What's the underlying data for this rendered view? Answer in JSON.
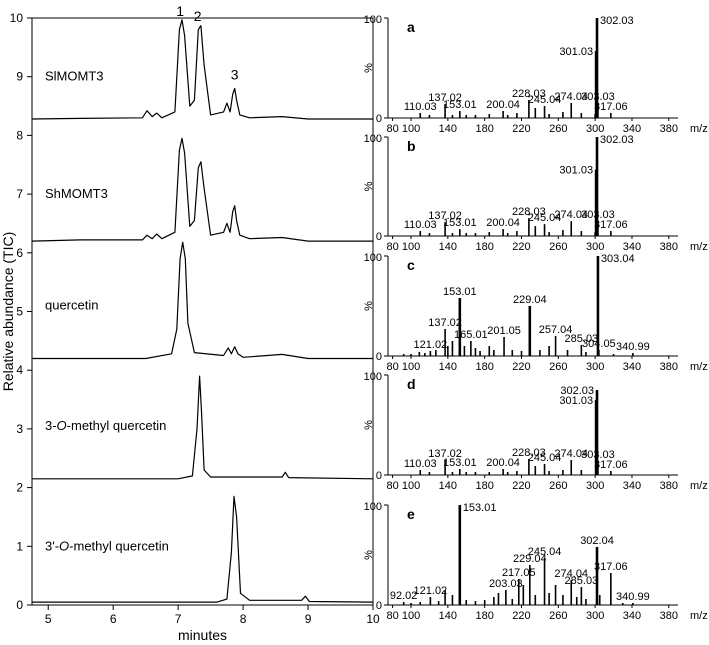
{
  "left_panel": {
    "ylabel": "Relative abundance (TIC)",
    "xlabel": "minutes",
    "x_ticks": [
      "5",
      "6",
      "7",
      "8",
      "9",
      "10"
    ],
    "y_ticks": [
      "0",
      "1",
      "2",
      "3",
      "4",
      "5",
      "6",
      "7",
      "8",
      "9",
      "10"
    ],
    "peak_labels": [
      "1",
      "2",
      "3"
    ],
    "trace_labels": [
      {
        "text": "SlMOMT3",
        "italic_part": "",
        "rest": ""
      },
      {
        "text": "ShMOMT3",
        "italic_part": "",
        "rest": ""
      },
      {
        "text": "quercetin",
        "italic_part": "",
        "rest": ""
      },
      {
        "text": "3-",
        "italic_part": "O",
        "rest": "-methyl quercetin"
      },
      {
        "text": "3'-",
        "italic_part": "O",
        "rest": "-methyl quercetin"
      }
    ]
  },
  "spectra_axis": {
    "x_ticks": [
      "80",
      "100",
      "140",
      "180",
      "220",
      "260",
      "300",
      "340",
      "380"
    ],
    "x_unit": "m/z",
    "y_top": "100",
    "y_mid": "%",
    "y_bottom": "0"
  },
  "chart_data": [
    {
      "type": "line",
      "title": "",
      "xlabel": "minutes",
      "ylabel": "Relative abundance (TIC)",
      "xlim": [
        4.75,
        10
      ],
      "ylim": [
        0,
        10
      ],
      "series": [
        {
          "baseline": 8.28,
          "x": [
            4.75,
            5.5,
            6.45,
            6.52,
            6.6,
            6.67,
            6.75,
            6.95,
            7.02,
            7.06,
            7.1,
            7.18,
            7.25,
            7.31,
            7.35,
            7.4,
            7.5,
            7.7,
            7.75,
            7.8,
            7.84,
            7.87,
            7.9,
            7.95,
            8.1,
            8.6,
            9,
            10
          ],
          "y": [
            8.28,
            8.29,
            8.3,
            8.42,
            8.32,
            8.38,
            8.3,
            8.4,
            9.8,
            9.97,
            9.7,
            8.5,
            8.6,
            9.8,
            9.87,
            9.2,
            8.35,
            8.4,
            8.55,
            8.4,
            8.7,
            8.8,
            8.6,
            8.35,
            8.3,
            8.32,
            8.28,
            8.28
          ]
        },
        {
          "baseline": 6.2,
          "x": [
            4.75,
            5.5,
            6.45,
            6.52,
            6.6,
            6.67,
            6.75,
            6.95,
            7.02,
            7.06,
            7.1,
            7.18,
            7.25,
            7.31,
            7.35,
            7.4,
            7.5,
            7.7,
            7.75,
            7.8,
            7.84,
            7.87,
            7.9,
            7.95,
            8.1,
            8.6,
            9,
            10
          ],
          "y": [
            6.2,
            6.22,
            6.22,
            6.3,
            6.24,
            6.32,
            6.24,
            6.35,
            7.75,
            7.95,
            7.7,
            6.45,
            6.55,
            7.45,
            7.55,
            7.1,
            6.3,
            6.35,
            6.5,
            6.35,
            6.7,
            6.8,
            6.55,
            6.3,
            6.24,
            6.26,
            6.2,
            6.2
          ]
        },
        {
          "baseline": 4.2,
          "x": [
            4.75,
            6.5,
            6.9,
            6.98,
            7.03,
            7.07,
            7.11,
            7.15,
            7.25,
            7.7,
            7.77,
            7.82,
            7.87,
            7.92,
            8,
            8.6,
            9,
            10
          ],
          "y": [
            4.2,
            4.2,
            4.28,
            4.7,
            5.9,
            6.18,
            5.9,
            4.8,
            4.3,
            4.25,
            4.38,
            4.28,
            4.4,
            4.28,
            4.22,
            4.27,
            4.2,
            4.2
          ]
        },
        {
          "baseline": 2.15,
          "x": [
            4.75,
            7.0,
            7.22,
            7.29,
            7.33,
            7.36,
            7.4,
            7.5,
            8.6,
            8.65,
            8.7,
            10
          ],
          "y": [
            2.15,
            2.15,
            2.2,
            3.0,
            3.9,
            3.3,
            2.3,
            2.18,
            2.18,
            2.26,
            2.17,
            2.15
          ]
        },
        {
          "baseline": 0.05,
          "x": [
            4.75,
            7.6,
            7.75,
            7.82,
            7.86,
            7.9,
            7.96,
            8.1,
            8.9,
            8.96,
            9.02,
            10
          ],
          "y": [
            0.05,
            0.05,
            0.1,
            0.9,
            1.85,
            1.5,
            0.2,
            0.08,
            0.08,
            0.15,
            0.06,
            0.05
          ]
        }
      ]
    },
    {
      "type": "bar",
      "panel": "a",
      "xlim": [
        75,
        390
      ],
      "ylim": [
        0,
        100
      ],
      "bars": [
        [
          110.03,
          5
        ],
        [
          120,
          3
        ],
        [
          137.02,
          14
        ],
        [
          145,
          3
        ],
        [
          153.01,
          7
        ],
        [
          160,
          3
        ],
        [
          170,
          3
        ],
        [
          185,
          4
        ],
        [
          200.04,
          7
        ],
        [
          205,
          3
        ],
        [
          215,
          5
        ],
        [
          228.03,
          18
        ],
        [
          235,
          10
        ],
        [
          245.04,
          12
        ],
        [
          250,
          4
        ],
        [
          265,
          6
        ],
        [
          274.04,
          15
        ],
        [
          285,
          5
        ],
        [
          300,
          4
        ],
        [
          301.03,
          67
        ],
        [
          302.03,
          100
        ],
        [
          303.03,
          15
        ],
        [
          317.06,
          5
        ]
      ],
      "labels": [
        [
          "110.03",
          110.03
        ],
        [
          "137.02",
          137.02
        ],
        [
          "153.01",
          153.01
        ],
        [
          "200.04",
          200.04
        ],
        [
          "228.03",
          228.03
        ],
        [
          "245.04",
          245.04
        ],
        [
          "274.04",
          274.04
        ],
        [
          "301.03",
          301.03
        ],
        [
          "302.03",
          302.03
        ],
        [
          "303.03",
          303.03
        ],
        [
          "317.06",
          317.06
        ]
      ]
    },
    {
      "type": "bar",
      "panel": "b",
      "xlim": [
        75,
        390
      ],
      "ylim": [
        0,
        100
      ],
      "bars": [
        [
          110.03,
          5
        ],
        [
          120,
          3
        ],
        [
          137.02,
          14
        ],
        [
          145,
          3
        ],
        [
          153.01,
          7
        ],
        [
          160,
          3
        ],
        [
          170,
          3
        ],
        [
          185,
          4
        ],
        [
          200.04,
          7
        ],
        [
          205,
          3
        ],
        [
          215,
          5
        ],
        [
          228.03,
          18
        ],
        [
          235,
          10
        ],
        [
          245.04,
          12
        ],
        [
          250,
          4
        ],
        [
          265,
          6
        ],
        [
          274.04,
          15
        ],
        [
          285,
          5
        ],
        [
          300,
          4
        ],
        [
          301.03,
          67
        ],
        [
          302.03,
          100
        ],
        [
          303.03,
          15
        ],
        [
          317.06,
          5
        ]
      ],
      "labels": [
        [
          "110.03",
          110.03
        ],
        [
          "137.02",
          137.02
        ],
        [
          "153.01",
          153.01
        ],
        [
          "200.04",
          200.04
        ],
        [
          "228.03",
          228.03
        ],
        [
          "245.04",
          245.04
        ],
        [
          "274.04",
          274.04
        ],
        [
          "301.03",
          301.03
        ],
        [
          "302.03",
          302.03
        ],
        [
          "303.03",
          303.03
        ],
        [
          "317.06",
          317.06
        ]
      ]
    },
    {
      "type": "bar",
      "panel": "c",
      "xlim": [
        75,
        390
      ],
      "ylim": [
        0,
        100
      ],
      "bars": [
        [
          92,
          2
        ],
        [
          100,
          2
        ],
        [
          109,
          4
        ],
        [
          115,
          3
        ],
        [
          121.02,
          5
        ],
        [
          127,
          6
        ],
        [
          137.02,
          27
        ],
        [
          140,
          10
        ],
        [
          145,
          15
        ],
        [
          153.01,
          58
        ],
        [
          158,
          10
        ],
        [
          165.01,
          15
        ],
        [
          170,
          8
        ],
        [
          175,
          5
        ],
        [
          185,
          10
        ],
        [
          190,
          6
        ],
        [
          201.05,
          19
        ],
        [
          210,
          6
        ],
        [
          220,
          5
        ],
        [
          229.04,
          50
        ],
        [
          240,
          6
        ],
        [
          250,
          10
        ],
        [
          257.04,
          20
        ],
        [
          270,
          6
        ],
        [
          285.03,
          11
        ],
        [
          290,
          4
        ],
        [
          303.04,
          100
        ],
        [
          304.05,
          6
        ],
        [
          320,
          2
        ],
        [
          340.99,
          3
        ]
      ],
      "labels": [
        [
          "121.02",
          121.02
        ],
        [
          "137.02",
          137.02
        ],
        [
          "153.01",
          153.01
        ],
        [
          "165.01",
          165.01
        ],
        [
          "201.05",
          201.05
        ],
        [
          "229.04",
          229.04
        ],
        [
          "257.04",
          257.04
        ],
        [
          "285.03",
          285.03
        ],
        [
          "303.04",
          303.04
        ],
        [
          "304.05",
          304.05
        ],
        [
          "340.99",
          340.99
        ]
      ]
    },
    {
      "type": "bar",
      "panel": "d",
      "xlim": [
        75,
        390
      ],
      "ylim": [
        0,
        100
      ],
      "bars": [
        [
          110.03,
          5
        ],
        [
          120,
          3
        ],
        [
          137.02,
          15
        ],
        [
          145,
          3
        ],
        [
          153.01,
          6
        ],
        [
          160,
          3
        ],
        [
          170,
          3
        ],
        [
          185,
          3
        ],
        [
          200.04,
          6
        ],
        [
          205,
          3
        ],
        [
          215,
          4
        ],
        [
          228.03,
          16
        ],
        [
          235,
          9
        ],
        [
          245.04,
          11
        ],
        [
          250,
          4
        ],
        [
          265,
          5
        ],
        [
          274.04,
          15
        ],
        [
          285,
          5
        ],
        [
          301.03,
          75
        ],
        [
          302.03,
          85
        ],
        [
          303.03,
          14
        ],
        [
          317.06,
          4
        ]
      ],
      "labels": [
        [
          "110.03",
          110.03
        ],
        [
          "137.02",
          137.02
        ],
        [
          "153.01",
          153.01
        ],
        [
          "200.04",
          200.04
        ],
        [
          "228.03",
          228.03
        ],
        [
          "245.04",
          245.04
        ],
        [
          "274.04",
          274.04
        ],
        [
          "301.03",
          301.03
        ],
        [
          "302.03",
          302.03
        ],
        [
          "303.03",
          303.03
        ],
        [
          "317.06",
          317.06
        ]
      ]
    },
    {
      "type": "bar",
      "panel": "e",
      "xlim": [
        75,
        390
      ],
      "ylim": [
        0,
        100
      ],
      "bars": [
        [
          92.02,
          3
        ],
        [
          100,
          2
        ],
        [
          110,
          3
        ],
        [
          121.02,
          8
        ],
        [
          130,
          4
        ],
        [
          137,
          15
        ],
        [
          145,
          10
        ],
        [
          153.01,
          100
        ],
        [
          160,
          5
        ],
        [
          170,
          4
        ],
        [
          180,
          5
        ],
        [
          190,
          8
        ],
        [
          195,
          12
        ],
        [
          203.03,
          15
        ],
        [
          210,
          6
        ],
        [
          217.05,
          26
        ],
        [
          222,
          20
        ],
        [
          229.04,
          40
        ],
        [
          235,
          10
        ],
        [
          245.04,
          47
        ],
        [
          250,
          12
        ],
        [
          257,
          20
        ],
        [
          265,
          10
        ],
        [
          274.04,
          25
        ],
        [
          280,
          8
        ],
        [
          285.03,
          18
        ],
        [
          290,
          6
        ],
        [
          302.04,
          58
        ],
        [
          305,
          10
        ],
        [
          317.06,
          32
        ],
        [
          330,
          2
        ],
        [
          340.99,
          2
        ]
      ],
      "labels": [
        [
          "92.02",
          92.02
        ],
        [
          "121.02",
          121.02
        ],
        [
          "153.01",
          153.01
        ],
        [
          "203.03",
          203.03
        ],
        [
          "217.05",
          217.05
        ],
        [
          "229.04",
          229.04
        ],
        [
          "245.04",
          245.04
        ],
        [
          "274.04",
          274.04
        ],
        [
          "285.03",
          285.03
        ],
        [
          "302.04",
          302.04
        ],
        [
          "317.06",
          317.06
        ],
        [
          "340.99",
          340.99
        ]
      ]
    }
  ],
  "panel_letters": [
    "a",
    "b",
    "c",
    "d",
    "e"
  ]
}
